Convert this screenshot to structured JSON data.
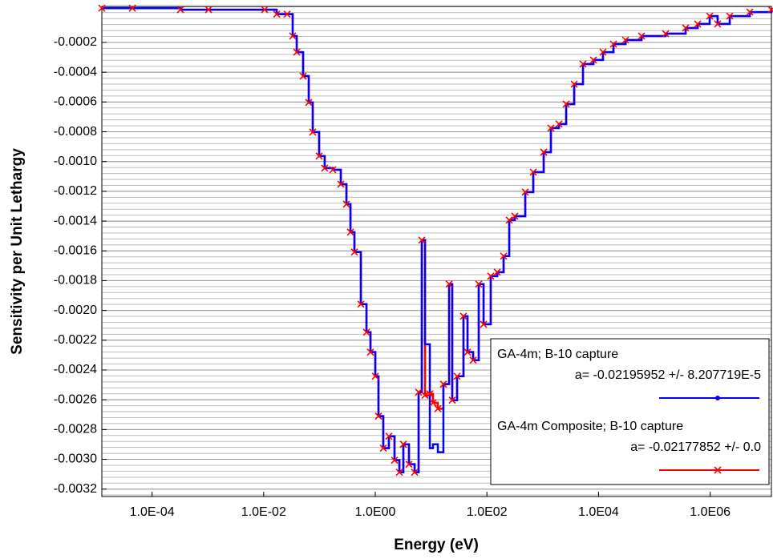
{
  "chart_data": {
    "type": "step-line",
    "xlabel": "Energy (eV)",
    "ylabel": "Sensitivity per Unit Lethargy",
    "xscale": "log",
    "xlim": [
      1.26e-05,
      12500000.0
    ],
    "ylim": [
      -0.00325,
      4.2e-05
    ],
    "xticks": [
      {
        "value": 0.0001,
        "label": "1.0E-04"
      },
      {
        "value": 0.01,
        "label": "1.0E-02"
      },
      {
        "value": 1,
        "label": "1.0E00"
      },
      {
        "value": 100,
        "label": "1.0E02"
      },
      {
        "value": 10000,
        "label": "1.0E04"
      },
      {
        "value": 1000000,
        "label": "1.0E06"
      }
    ],
    "yticks": [
      {
        "value": -0.0002,
        "label": "-0.0002"
      },
      {
        "value": -0.0004,
        "label": "-0.0004"
      },
      {
        "value": -0.0006,
        "label": "-0.0006"
      },
      {
        "value": -0.0008,
        "label": "-0.0008"
      },
      {
        "value": -0.001,
        "label": "-0.0010"
      },
      {
        "value": -0.0012,
        "label": "-0.0012"
      },
      {
        "value": -0.0014,
        "label": "-0.0014"
      },
      {
        "value": -0.0016,
        "label": "-0.0016"
      },
      {
        "value": -0.0018,
        "label": "-0.0018"
      },
      {
        "value": -0.002,
        "label": "-0.0020"
      },
      {
        "value": -0.0022,
        "label": "-0.0022"
      },
      {
        "value": -0.0024,
        "label": "-0.0024"
      },
      {
        "value": -0.0026,
        "label": "-0.0026"
      },
      {
        "value": -0.0028,
        "label": "-0.0028"
      },
      {
        "value": -0.003,
        "label": "-0.0030"
      },
      {
        "value": -0.0032,
        "label": "-0.0032"
      }
    ],
    "grid": true,
    "legend": "lower right",
    "x": [
      1.26e-05,
      4.44e-05,
      0.000323,
      0.00103,
      0.0104,
      0.0171,
      0.0263,
      0.0331,
      0.0391,
      0.0509,
      0.0642,
      0.0757,
      0.0986,
      0.124,
      0.173,
      0.241,
      0.304,
      0.359,
      0.423,
      0.551,
      0.695,
      0.82,
      1.0,
      1.14,
      1.39,
      1.75,
      2.21,
      2.7,
      3.18,
      4.01,
      5.06,
      5.97,
      6.81,
      7.78,
      9.49,
      10.8,
      13.2,
      16.6,
      21.0,
      23.9,
      29.2,
      38.0,
      44.9,
      56.6,
      71.3,
      87.1,
      117,
      153,
      199,
      251,
      316,
      486,
      676,
      1040,
      1400,
      1950,
      2630,
      3660,
      5260,
      8090,
      12000,
      18500,
      30400,
      58900,
      159000,
      363000,
      597000,
      980000,
      1360000,
      2240000,
      5130000,
      12500000
    ],
    "series": [
      {
        "name": "GA-4m;  B-10 capture",
        "note": "a= -0.02195952 +/- 8.207719E-5",
        "color": "#0000ff",
        "marker": "dot",
        "values": [
          3e-05,
          3e-05,
          2e-05,
          2e-05,
          2e-05,
          -1e-05,
          -1e-05,
          -0.000157,
          -0.000265,
          -0.000426,
          -0.000603,
          -0.000802,
          -0.000963,
          -0.001044,
          -0.001055,
          -0.001152,
          -0.001286,
          -0.001474,
          -0.001608,
          -0.001958,
          -0.002146,
          -0.00228,
          -0.002442,
          -0.00271,
          -0.002925,
          -0.002845,
          -0.003006,
          -0.003087,
          -0.002899,
          -0.003033,
          -0.003087,
          -0.002549,
          -0.001528,
          -0.002227,
          -0.002925,
          -0.002899,
          -0.002952,
          -0.002495,
          -0.001823,
          -0.002603,
          -0.002442,
          -0.002039,
          -0.00228,
          -0.002334,
          -0.001823,
          -0.002093,
          -0.00177,
          -0.001743,
          -0.001635,
          -0.001393,
          -0.001367,
          -0.001205,
          -0.001071,
          -0.000937,
          -0.000775,
          -0.000748,
          -0.000614,
          -0.00048,
          -0.000345,
          -0.000318,
          -0.000265,
          -0.000211,
          -0.000184,
          -0.000157,
          -0.000141,
          -0.000103,
          -7.6e-05,
          -2.3e-05,
          -7.6e-05,
          -2.3e-05,
          4e-06,
          2e-05
        ]
      },
      {
        "name": "GA-4m Composite;  B-10 capture",
        "note": "a= -0.02177852 +/- 0.0",
        "color": "#ff0000",
        "marker": "x",
        "values": [
          3e-05,
          3e-05,
          2e-05,
          2e-05,
          2e-05,
          -1e-05,
          -1e-05,
          -0.000157,
          -0.000265,
          -0.000426,
          -0.000603,
          -0.000802,
          -0.000963,
          -0.001044,
          -0.001055,
          -0.001152,
          -0.001286,
          -0.001474,
          -0.001608,
          -0.001958,
          -0.002146,
          -0.00228,
          -0.002442,
          -0.00271,
          -0.002925,
          -0.002845,
          -0.003006,
          -0.003087,
          -0.002899,
          -0.003033,
          -0.003087,
          -0.002549,
          -0.001528,
          -0.00257,
          -0.00256,
          -0.00262,
          -0.00266,
          -0.002495,
          -0.001823,
          -0.002603,
          -0.002442,
          -0.002039,
          -0.00228,
          -0.002334,
          -0.001823,
          -0.002093,
          -0.00177,
          -0.001743,
          -0.001635,
          -0.001393,
          -0.001367,
          -0.001205,
          -0.001071,
          -0.000937,
          -0.000775,
          -0.000748,
          -0.000614,
          -0.00048,
          -0.000345,
          -0.000318,
          -0.000265,
          -0.000211,
          -0.000184,
          -0.000157,
          -0.000141,
          -0.000103,
          -7.6e-05,
          -2.3e-05,
          -7.6e-05,
          -2.3e-05,
          4e-06,
          2e-05
        ]
      }
    ]
  }
}
